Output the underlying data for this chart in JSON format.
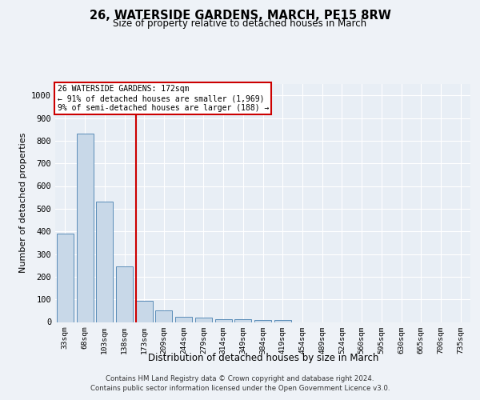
{
  "title": "26, WATERSIDE GARDENS, MARCH, PE15 8RW",
  "subtitle": "Size of property relative to detached houses in March",
  "xlabel": "Distribution of detached houses by size in March",
  "ylabel": "Number of detached properties",
  "bin_labels": [
    "33sqm",
    "68sqm",
    "103sqm",
    "138sqm",
    "173sqm",
    "209sqm",
    "244sqm",
    "279sqm",
    "314sqm",
    "349sqm",
    "384sqm",
    "419sqm",
    "454sqm",
    "489sqm",
    "524sqm",
    "560sqm",
    "595sqm",
    "630sqm",
    "665sqm",
    "700sqm",
    "735sqm"
  ],
  "bar_values": [
    390,
    830,
    530,
    245,
    95,
    52,
    22,
    18,
    14,
    12,
    10,
    10,
    0,
    0,
    0,
    0,
    0,
    0,
    0,
    0,
    0
  ],
  "bar_color": "#c8d8e8",
  "bar_edge_color": "#5b8db8",
  "ylim": [
    0,
    1050
  ],
  "yticks": [
    0,
    100,
    200,
    300,
    400,
    500,
    600,
    700,
    800,
    900,
    1000
  ],
  "red_line_color": "#cc0000",
  "annotation_line1": "26 WATERSIDE GARDENS: 172sqm",
  "annotation_line2": "← 91% of detached houses are smaller (1,969)",
  "annotation_line3": "9% of semi-detached houses are larger (188) →",
  "footer_line1": "Contains HM Land Registry data © Crown copyright and database right 2024.",
  "footer_line2": "Contains public sector information licensed under the Open Government Licence v3.0.",
  "bg_color": "#eef2f7",
  "plot_bg_color": "#e8eef5"
}
